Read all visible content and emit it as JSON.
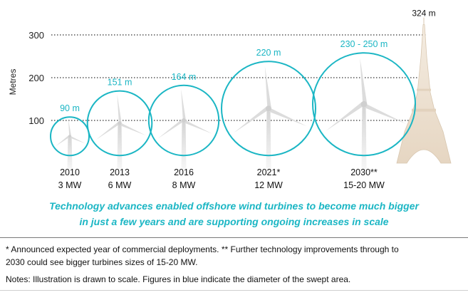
{
  "chart_data": {
    "type": "other",
    "ylabel": "Metres",
    "yticks": [
      100,
      200,
      300
    ],
    "ylim": [
      0,
      330
    ],
    "grid": true,
    "turbines": [
      {
        "year": "2010",
        "capacity": "3 MW",
        "diameter_label": "90 m",
        "diameter": 90
      },
      {
        "year": "2013",
        "capacity": "6 MW",
        "diameter_label": "151 m",
        "diameter": 151
      },
      {
        "year": "2016",
        "capacity": "8 MW",
        "diameter_label": "164 m",
        "diameter": 164
      },
      {
        "year": "2021*",
        "capacity": "12 MW",
        "diameter_label": "220 m",
        "diameter": 220
      },
      {
        "year": "2030**",
        "capacity": "15-20 MW",
        "diameter_label": "230 - 250 m",
        "diameter": 240
      }
    ],
    "reference": {
      "label": "324 m",
      "height": 324,
      "icon": "eiffel-tower-icon"
    },
    "colors": {
      "circle": "#1bb6c4",
      "label": "#1bb6c4",
      "grid": "#333333",
      "tower": "#efe3d3",
      "turbine": "#dcdcdc"
    }
  },
  "caption_line1": "Technology advances enabled offshore wind turbines to become much bigger",
  "caption_line2": "in just a few years and are supporting ongoing increases in scale",
  "footnote_line1": "* Announced expected year of commercial deployments. ** Further technology improvements through to",
  "footnote_line2": "2030 could see bigger turbines sizes of 15-20 MW.",
  "notes": "Notes: Illustration is drawn to scale. Figures in blue indicate the diameter of the swept area."
}
